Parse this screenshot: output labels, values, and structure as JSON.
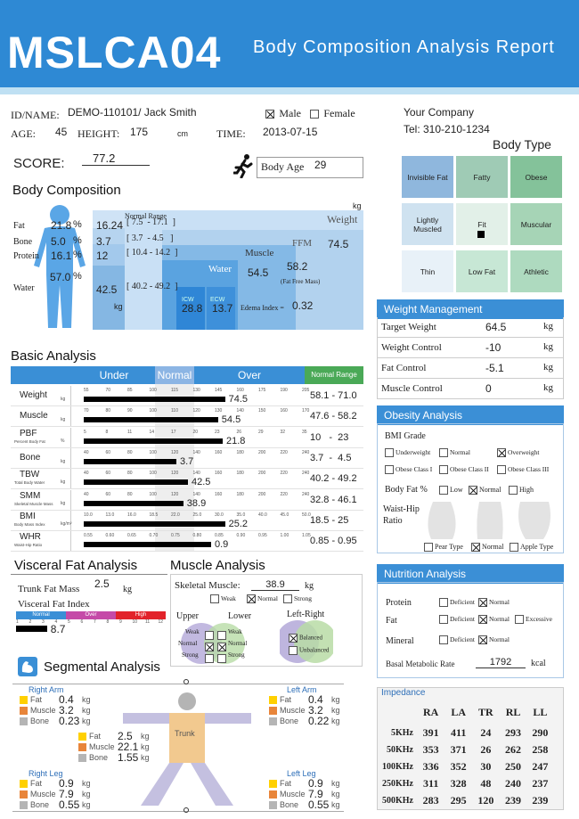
{
  "header": {
    "code": "MSLCA04",
    "title": "Body Composition Analysis Report"
  },
  "patient": {
    "id_label": "ID/NAME:",
    "id_value": "DEMO-110101/ Jack Smith",
    "male_label": "Male",
    "female_label": "Female",
    "age_label": "AGE:",
    "age_value": "45",
    "height_label": "HEIGHT:",
    "height_value": "175",
    "height_unit": "cm",
    "time_label": "TIME:",
    "time_value": "2013-07-15"
  },
  "company": {
    "name": "Your Company",
    "tel": "Tel: 310-210-1234"
  },
  "score": {
    "label": "SCORE:",
    "value": "77.2",
    "body_age_label": "Body Age",
    "body_age_value": "29"
  },
  "body_type": {
    "title": "Body Type",
    "cells": [
      "Invisible Fat",
      "Fatty",
      "Obese",
      "Lightly Muscled",
      "Fit",
      "Muscular",
      "Thin",
      "Low Fat",
      "Athletic"
    ],
    "colors": [
      "#8fb7dd",
      "#9fcbb5",
      "#84c29a",
      "#cfe2f0",
      "#e2f0e8",
      "#a6d4b6",
      "#e8f1f8",
      "#c7e7d5",
      "#aedabf"
    ]
  },
  "body_composition": {
    "title": "Body Composition",
    "unit": "kg",
    "normal_range_label": "Normal Range",
    "rows": [
      {
        "name": "Fat",
        "pct": "21.8",
        "pct_unit": "%",
        "kg": "16.24",
        "range": "[ 7.5  - 17.1  ]"
      },
      {
        "name": "Bone",
        "pct": "5.0",
        "pct_unit": "%",
        "kg": "3.7",
        "range": "[ 3.7  - 4.5   ]"
      },
      {
        "name": "Protein",
        "pct": "16.1",
        "pct_unit": "%",
        "kg": "12",
        "range": "[ 10.4 - 14.2  ]"
      },
      {
        "name": "Water",
        "pct": "57.0",
        "pct_unit": "%",
        "kg": "42.5",
        "range": "[ 40.2 - 49.2  ]"
      }
    ],
    "kg_unit": "kg",
    "weight_label": "Weight",
    "weight_value": "74.5",
    "ffm_label": "FFM",
    "ffm_value": "58.2",
    "ffm_sub": "(Fat Free Mass)",
    "muscle_label": "Muscle",
    "muscle_value": "54.5",
    "water_label": "Water",
    "icw_label": "ICW",
    "icw_value": "28.8",
    "ecw_label": "ECW",
    "ecw_value": "13.7",
    "edema_label": "Edema Index =",
    "edema_value": "0.32"
  },
  "basic": {
    "title": "Basic Analysis",
    "under": "Under",
    "normal": "Normal",
    "over": "Over",
    "range_hdr": "Normal Range",
    "rows": [
      {
        "name": "Weight",
        "sub": "",
        "unit": "kg",
        "value": "74.5",
        "range": "58.1 - 71.0",
        "frac": 0.61,
        "ticks": [
          "55",
          "70",
          "85",
          "100",
          "115",
          "130",
          "145",
          "160",
          "175",
          "190",
          "205"
        ]
      },
      {
        "name": "Muscle",
        "sub": "",
        "unit": "kg",
        "value": "54.5",
        "range": "47.6 - 58.2",
        "frac": 0.58,
        "ticks": [
          "70",
          "80",
          "90",
          "100",
          "110",
          "120",
          "130",
          "140",
          "150",
          "160",
          "170"
        ]
      },
      {
        "name": "PBF",
        "sub": "Percent Body Fat",
        "unit": "%",
        "value": "21.8",
        "range": "10   -  23",
        "frac": 0.6,
        "ticks": [
          "5",
          "8",
          "11",
          "14",
          "17",
          "20",
          "23",
          "26",
          "29",
          "32",
          "35"
        ]
      },
      {
        "name": "Bone",
        "sub": "",
        "unit": "kg",
        "value": "3.7",
        "range": "3.7  -  4.5",
        "frac": 0.4,
        "ticks": [
          "40",
          "60",
          "80",
          "100",
          "120",
          "140",
          "160",
          "180",
          "200",
          "220",
          "240"
        ]
      },
      {
        "name": "TBW",
        "sub": "Total Body Water",
        "unit": "kg",
        "value": "42.5",
        "range": "40.2 - 49.2",
        "frac": 0.45,
        "ticks": [
          "40",
          "60",
          "80",
          "100",
          "120",
          "140",
          "160",
          "180",
          "200",
          "220",
          "240"
        ]
      },
      {
        "name": "SMM",
        "sub": "Skeletal Muscle Mass",
        "unit": "kg",
        "value": "38.9",
        "range": "32.8 - 46.1",
        "frac": 0.43,
        "ticks": [
          "40",
          "60",
          "80",
          "100",
          "120",
          "140",
          "160",
          "180",
          "200",
          "220",
          "240"
        ]
      },
      {
        "name": "BMI",
        "sub": "Body Mass Index",
        "unit": "kg/m²",
        "value": "25.2",
        "range": "18.5 - 25",
        "frac": 0.61,
        "ticks": [
          "10.0",
          "13.0",
          "16.0",
          "18.5",
          "22.0",
          "25.0",
          "30.0",
          "35.0",
          "40.0",
          "45.0",
          "50.0"
        ]
      },
      {
        "name": "WHR",
        "sub": "Waist-Hip Ratio",
        "unit": "",
        "value": "0.9",
        "range": "0.85 - 0.95",
        "frac": 0.55,
        "ticks": [
          "0.55",
          "0.60",
          "0.65",
          "0.70",
          "0.75",
          "0.80",
          "0.85",
          "0.90",
          "0.95",
          "1.00",
          "1.05"
        ]
      }
    ]
  },
  "weight_mgmt": {
    "title": "Weight Management",
    "rows": [
      {
        "label": "Target Weight",
        "value": "64.5",
        "unit": "kg"
      },
      {
        "label": "Weight Control",
        "value": "-10",
        "unit": "kg"
      },
      {
        "label": "Fat Control",
        "value": "-5.1",
        "unit": "kg"
      },
      {
        "label": "Muscle Control",
        "value": "0",
        "unit": "kg"
      }
    ]
  },
  "obesity": {
    "title": "Obesity Analysis",
    "bmi_grade": "BMI Grade",
    "grades": [
      "Underweight",
      "Normal",
      "Overweight",
      "Obese Class I",
      "Obese Class II",
      "Obese Class III"
    ],
    "body_fat_label": "Body Fat %",
    "bf_opts": [
      "Low",
      "Normal",
      "High"
    ],
    "whr_label1": "Waist-Hip",
    "whr_label2": "Ratio",
    "whr_opts": [
      "Pear Type",
      "Normal",
      "Apple Type"
    ]
  },
  "nutrition": {
    "title": "Nutrition Analysis",
    "protein": "Protein",
    "fat": "Fat",
    "mineral": "Mineral",
    "deficient": "Deficient",
    "normal": "Normal",
    "excessive": "Excessive",
    "bmr_label": "Basal Metabolic Rate",
    "bmr_value": "1792",
    "bmr_unit": "kcal"
  },
  "visceral": {
    "title": "Visceral Fat Analysis",
    "trunk_label": "Trunk Fat Mass",
    "trunk_value": "2.5",
    "trunk_unit": "kg",
    "index_label": "Visceral Fat Index",
    "normal": "Normal",
    "over": "Over",
    "high": "High",
    "ticks": [
      "1",
      "2",
      "3",
      "4",
      "5",
      "6",
      "7",
      "8",
      "9",
      "10",
      "11",
      "12"
    ],
    "index_value": "8.7",
    "index_frac": 0.6
  },
  "muscle": {
    "title": "Muscle Analysis",
    "skeletal_label": "Skeletal Muscle:",
    "skeletal_value": "38.9",
    "skeletal_unit": "kg",
    "weak": "Weak",
    "normal": "Normal",
    "strong": "Strong",
    "upper": "Upper",
    "lower": "Lower",
    "left_right": "Left-Right",
    "balanced": "Balanced",
    "unbalanced": "Unbalanced"
  },
  "segmental": {
    "title": "Segmental Analysis",
    "trunk_label": "Trunk",
    "fat": "Fat",
    "muscle": "Muscle",
    "bone": "Bone",
    "unit": "kg",
    "right_arm": {
      "label": "Right Arm",
      "fat": "0.4",
      "muscle": "3.2",
      "bone": "0.23"
    },
    "left_arm": {
      "label": "Left Arm",
      "fat": "0.4",
      "muscle": "3.2",
      "bone": "0.22"
    },
    "trunk": {
      "fat": "2.5",
      "muscle": "22.1",
      "bone": "1.55"
    },
    "right_leg": {
      "label": "Right Leg",
      "fat": "0.9",
      "muscle": "7.9",
      "bone": "0.55"
    },
    "left_leg": {
      "label": "Left Leg",
      "fat": "0.9",
      "muscle": "7.9",
      "bone": "0.55"
    }
  },
  "impedance": {
    "title": "Impedance",
    "cols": [
      "RA",
      "LA",
      "TR",
      "RL",
      "LL"
    ],
    "rows": [
      {
        "freq": "5KHz",
        "vals": [
          "391",
          "411",
          "24",
          "293",
          "290"
        ]
      },
      {
        "freq": "50KHz",
        "vals": [
          "353",
          "371",
          "26",
          "262",
          "258"
        ]
      },
      {
        "freq": "100KHz",
        "vals": [
          "336",
          "352",
          "30",
          "250",
          "247"
        ]
      },
      {
        "freq": "250KHz",
        "vals": [
          "311",
          "328",
          "48",
          "240",
          "237"
        ]
      },
      {
        "freq": "500KHz",
        "vals": [
          "283",
          "295",
          "120",
          "239",
          "239"
        ]
      }
    ]
  }
}
